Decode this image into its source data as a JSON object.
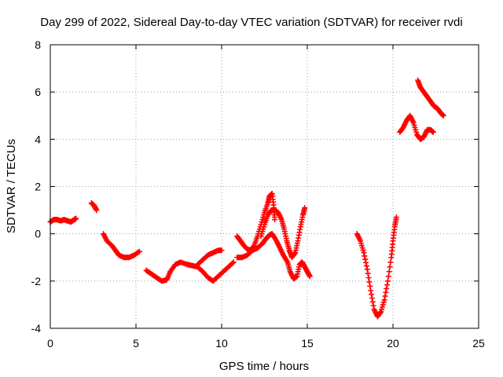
{
  "chart_data": {
    "type": "scatter",
    "title": "Day 299 of 2022, Sidereal Day-to-day VTEC variation (SDTVAR) for receiver rvdi",
    "xlabel": "GPS time / hours",
    "ylabel": "SDTVAR / TECUs",
    "xlim": [
      0,
      25
    ],
    "ylim": [
      -4,
      8
    ],
    "xticks": [
      0,
      5,
      10,
      15,
      20,
      25
    ],
    "yticks": [
      -4,
      -2,
      0,
      2,
      4,
      6,
      8
    ],
    "grid": true,
    "marker": "+",
    "color": "#ff0000",
    "series": [
      {
        "segments": [
          [
            [
              0.0,
              0.5
            ],
            [
              0.2,
              0.6
            ],
            [
              0.4,
              0.6
            ],
            [
              0.6,
              0.55
            ],
            [
              0.8,
              0.6
            ],
            [
              1.0,
              0.55
            ],
            [
              1.2,
              0.5
            ],
            [
              1.4,
              0.6
            ],
            [
              1.5,
              0.65
            ]
          ],
          [
            [
              2.4,
              1.3
            ],
            [
              2.55,
              1.2
            ],
            [
              2.7,
              1.0
            ]
          ],
          [
            [
              3.1,
              0.0
            ],
            [
              3.3,
              -0.3
            ],
            [
              3.6,
              -0.5
            ],
            [
              3.8,
              -0.7
            ],
            [
              4.0,
              -0.9
            ],
            [
              4.3,
              -1.0
            ],
            [
              4.6,
              -1.0
            ],
            [
              4.9,
              -0.9
            ],
            [
              5.2,
              -0.75
            ]
          ],
          [
            [
              5.6,
              -1.55
            ],
            [
              5.9,
              -1.7
            ],
            [
              6.2,
              -1.85
            ],
            [
              6.5,
              -2.0
            ],
            [
              6.8,
              -1.95
            ],
            [
              7.0,
              -1.6
            ],
            [
              7.3,
              -1.3
            ],
            [
              7.6,
              -1.2
            ],
            [
              8.0,
              -1.3
            ],
            [
              8.3,
              -1.35
            ],
            [
              8.6,
              -1.4
            ],
            [
              8.9,
              -1.6
            ],
            [
              9.2,
              -1.85
            ],
            [
              9.5,
              -2.0
            ],
            [
              9.8,
              -1.8
            ],
            [
              10.1,
              -1.6
            ],
            [
              10.4,
              -1.4
            ],
            [
              10.7,
              -1.2
            ]
          ],
          [
            [
              8.6,
              -1.3
            ],
            [
              8.9,
              -1.1
            ],
            [
              9.2,
              -0.9
            ],
            [
              9.5,
              -0.8
            ],
            [
              9.8,
              -0.7
            ],
            [
              10.0,
              -0.7
            ]
          ],
          [
            [
              10.9,
              -0.1
            ],
            [
              11.1,
              -0.3
            ],
            [
              11.3,
              -0.5
            ],
            [
              11.5,
              -0.65
            ],
            [
              11.7,
              -0.7
            ],
            [
              11.9,
              -0.5
            ],
            [
              12.1,
              -0.1
            ],
            [
              12.3,
              0.4
            ],
            [
              12.5,
              0.9
            ],
            [
              12.7,
              1.3
            ],
            [
              12.8,
              1.6
            ],
            [
              12.95,
              1.7
            ],
            [
              13.05,
              1.1
            ],
            [
              13.1,
              0.6
            ]
          ],
          [
            [
              10.9,
              -1.0
            ],
            [
              11.2,
              -1.0
            ],
            [
              11.5,
              -0.9
            ],
            [
              11.8,
              -0.7
            ],
            [
              12.1,
              -0.6
            ],
            [
              12.4,
              -0.4
            ],
            [
              12.6,
              -0.2
            ],
            [
              12.8,
              -0.05
            ],
            [
              12.95,
              0.0
            ],
            [
              13.2,
              -0.3
            ],
            [
              13.4,
              -0.6
            ],
            [
              13.6,
              -0.9
            ],
            [
              13.85,
              -1.2
            ],
            [
              14.0,
              -1.6
            ],
            [
              14.2,
              -1.9
            ],
            [
              14.4,
              -1.8
            ],
            [
              14.55,
              -1.3
            ],
            [
              14.7,
              -1.2
            ],
            [
              14.85,
              -1.4
            ],
            [
              15.0,
              -1.6
            ],
            [
              15.15,
              -1.8
            ]
          ],
          [
            [
              12.3,
              -0.1
            ],
            [
              12.5,
              0.4
            ],
            [
              12.7,
              0.8
            ],
            [
              12.9,
              1.0
            ],
            [
              13.1,
              1.0
            ],
            [
              13.3,
              0.9
            ],
            [
              13.5,
              0.6
            ],
            [
              13.65,
              0.2
            ],
            [
              13.8,
              -0.3
            ],
            [
              13.95,
              -0.7
            ],
            [
              14.1,
              -1.0
            ],
            [
              14.3,
              -0.8
            ],
            [
              14.45,
              -0.3
            ],
            [
              14.6,
              0.3
            ],
            [
              14.75,
              0.8
            ],
            [
              14.85,
              1.1
            ]
          ],
          [
            [
              17.9,
              0.0
            ],
            [
              18.1,
              -0.3
            ],
            [
              18.3,
              -0.8
            ],
            [
              18.5,
              -1.5
            ],
            [
              18.7,
              -2.4
            ],
            [
              18.9,
              -3.2
            ],
            [
              19.1,
              -3.5
            ],
            [
              19.3,
              -3.3
            ],
            [
              19.5,
              -2.8
            ],
            [
              19.7,
              -2.0
            ],
            [
              19.9,
              -1.0
            ],
            [
              20.0,
              -0.3
            ],
            [
              20.1,
              0.3
            ],
            [
              20.2,
              0.7
            ]
          ],
          [
            [
              20.4,
              4.3
            ],
            [
              20.6,
              4.5
            ],
            [
              20.8,
              4.8
            ],
            [
              21.0,
              5.0
            ],
            [
              21.2,
              4.7
            ],
            [
              21.4,
              4.2
            ],
            [
              21.6,
              4.0
            ],
            [
              21.8,
              4.1
            ],
            [
              22.0,
              4.4
            ],
            [
              22.2,
              4.4
            ],
            [
              22.35,
              4.3
            ]
          ],
          [
            [
              21.45,
              6.5
            ],
            [
              21.6,
              6.2
            ],
            [
              21.8,
              6.0
            ],
            [
              22.0,
              5.8
            ],
            [
              22.2,
              5.6
            ],
            [
              22.4,
              5.4
            ],
            [
              22.6,
              5.3
            ],
            [
              22.8,
              5.1
            ],
            [
              22.95,
              5.0
            ]
          ]
        ]
      }
    ]
  }
}
